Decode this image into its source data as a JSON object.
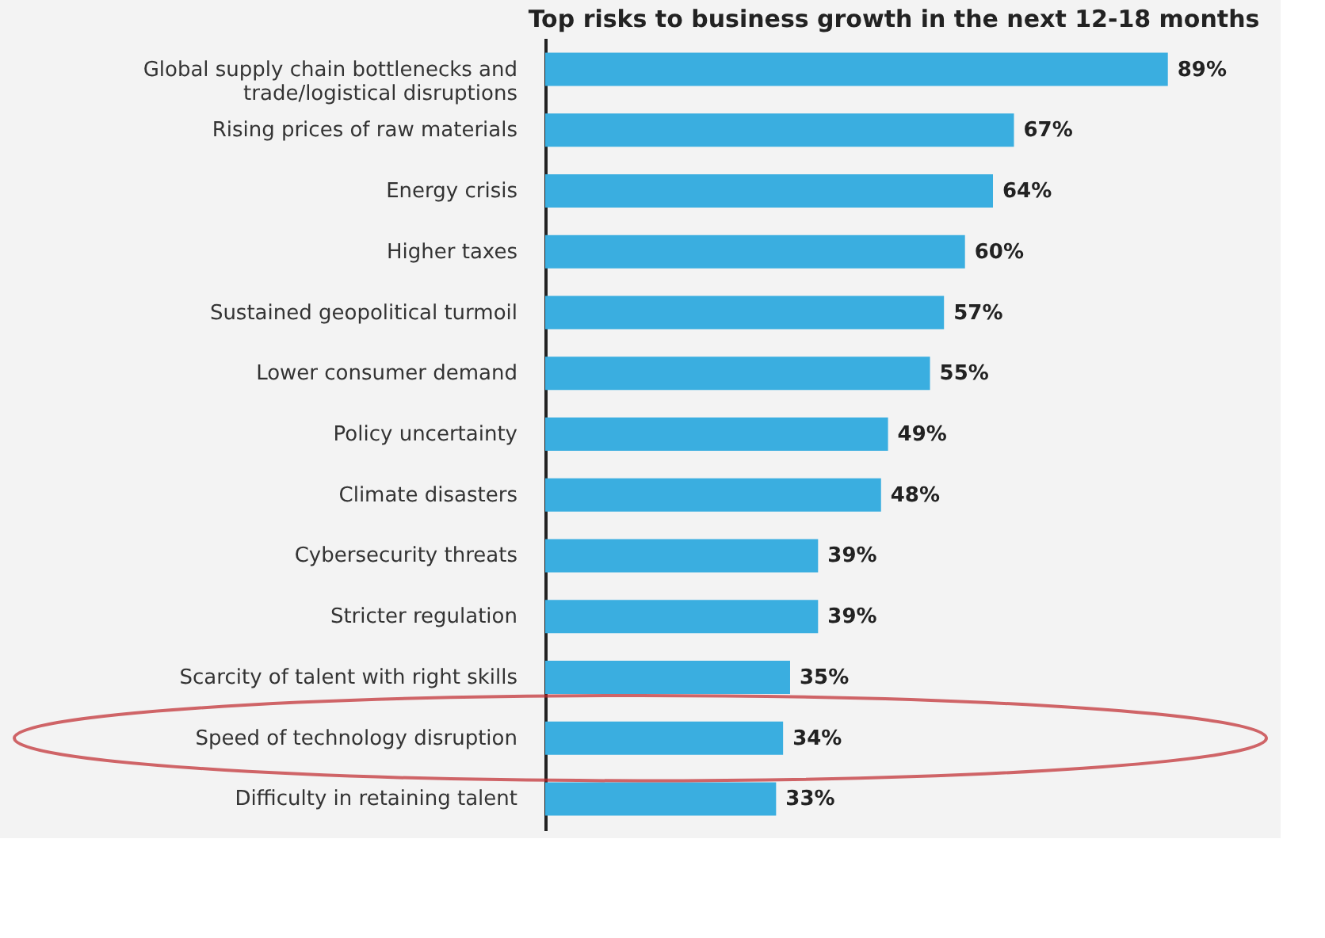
{
  "chart_data": {
    "type": "bar",
    "orientation": "horizontal",
    "title": "Top risks to business growth in the next 12-18 months",
    "categories": [
      "Global supply chain bottlenecks and\ntrade/logistical disruptions",
      "Rising prices of raw materials",
      "Energy crisis",
      "Higher taxes",
      "Sustained geopolitical turmoil",
      "Lower consumer demand",
      "Policy uncertainty",
      "Climate disasters",
      "Cybersecurity threats",
      "Stricter regulation",
      "Scarcity of talent with right skills",
      "Speed of technology disruption",
      "Difficulty in retaining talent"
    ],
    "values": [
      89,
      67,
      64,
      60,
      57,
      55,
      49,
      48,
      39,
      39,
      35,
      34,
      33
    ],
    "value_labels": [
      "89%",
      "67%",
      "64%",
      "60%",
      "57%",
      "55%",
      "49%",
      "48%",
      "39%",
      "39%",
      "35%",
      "34%",
      "33%"
    ],
    "color": "#3aaee0",
    "grid": false
  }
}
